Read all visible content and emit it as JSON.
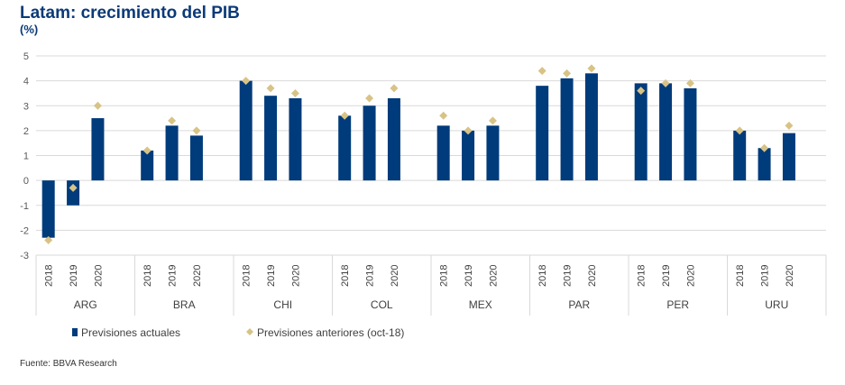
{
  "header": {
    "title": "Latam: crecimiento del PIB",
    "unit": "(%)"
  },
  "footer": {
    "source": "Fuente: BBVA Research"
  },
  "colors": {
    "bar": "#003B7B",
    "marker": "#D8C386",
    "grid": "#D9D9D9",
    "axis_text": "#595959"
  },
  "chart_data": {
    "type": "bar",
    "title": "Latam: crecimiento del PIB",
    "ylabel": "(%)",
    "ylim": [
      -3,
      5
    ],
    "yticks": [
      5,
      4,
      3,
      2,
      1,
      0,
      -1,
      -2,
      -3
    ],
    "grid": true,
    "legend_position": "bottom-left",
    "groups": [
      "ARG",
      "BRA",
      "CHI",
      "COL",
      "MEX",
      "PAR",
      "PER",
      "URU"
    ],
    "years": [
      "2018",
      "2019",
      "2020"
    ],
    "series": [
      {
        "name": "Previsiones actuales",
        "kind": "bar",
        "values": [
          [
            -2.3,
            -1.0,
            2.5
          ],
          [
            1.2,
            2.2,
            1.8
          ],
          [
            4.0,
            3.4,
            3.3
          ],
          [
            2.6,
            3.0,
            3.3
          ],
          [
            2.2,
            2.0,
            2.2
          ],
          [
            3.8,
            4.1,
            4.3
          ],
          [
            3.9,
            3.9,
            3.7
          ],
          [
            2.0,
            1.3,
            1.9
          ]
        ]
      },
      {
        "name": "Previsiones anteriores (oct-18)",
        "kind": "marker",
        "values": [
          [
            -2.4,
            -0.3,
            3.0
          ],
          [
            1.2,
            2.4,
            2.0
          ],
          [
            4.0,
            3.7,
            3.5
          ],
          [
            2.6,
            3.3,
            3.7
          ],
          [
            2.6,
            2.0,
            2.4
          ],
          [
            4.4,
            4.3,
            4.5
          ],
          [
            3.6,
            3.9,
            3.9
          ],
          [
            2.0,
            1.3,
            2.2
          ]
        ]
      }
    ]
  }
}
